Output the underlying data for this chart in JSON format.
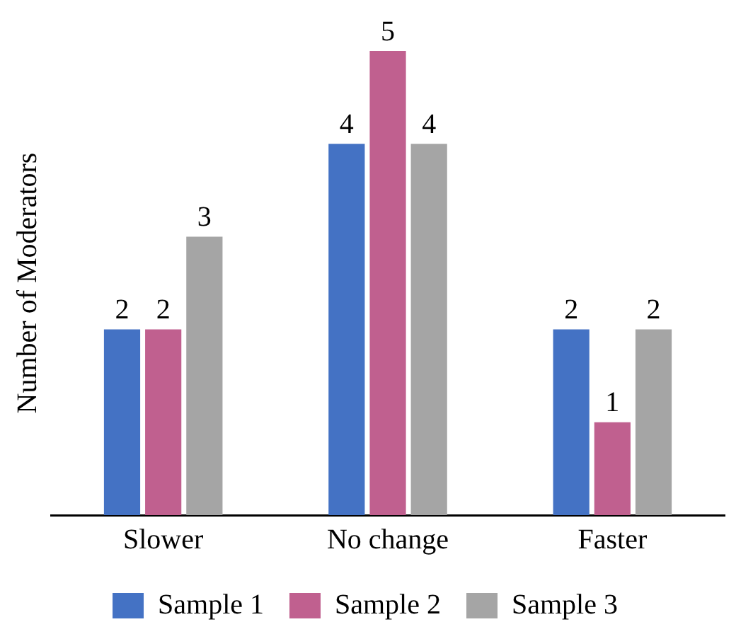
{
  "chart_data": {
    "type": "bar",
    "ylabel": "Number of Moderators",
    "categories": [
      "Slower",
      "No change",
      "Faster"
    ],
    "series": [
      {
        "name": "Sample 1",
        "color": "#4472c4",
        "values": [
          2,
          4,
          2
        ]
      },
      {
        "name": "Sample 2",
        "color": "#c0608f",
        "values": [
          2,
          5,
          1
        ]
      },
      {
        "name": "Sample 3",
        "color": "#a5a5a5",
        "values": [
          3,
          4,
          2
        ]
      }
    ],
    "ylim": [
      0,
      5
    ],
    "tick_labels": "x",
    "data_labels": true,
    "grid": false,
    "legend": "bottom"
  }
}
